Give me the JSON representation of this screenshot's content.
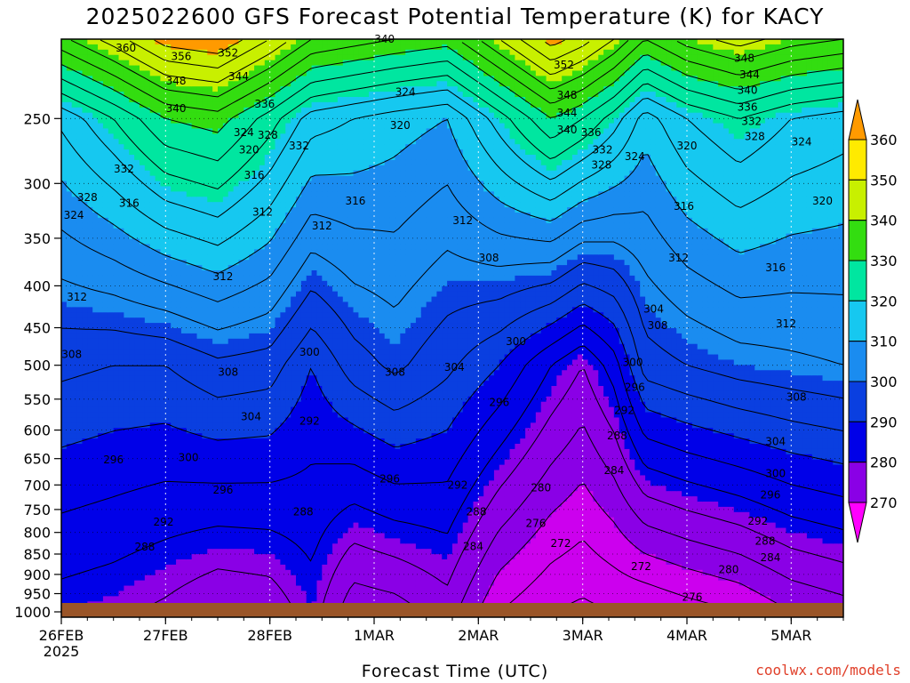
{
  "chart_data": {
    "type": "heatmap",
    "title": "2025022600 GFS Forecast Potential Temperature (K) for KACY",
    "xlabel": "Forecast Time (UTC)",
    "ylabel": "",
    "credit": "coolwx.com/models",
    "x_ticks": [
      {
        "label": "26FEB",
        "sub": "2025",
        "day": 0
      },
      {
        "label": "27FEB",
        "sub": "",
        "day": 1
      },
      {
        "label": "28FEB",
        "sub": "",
        "day": 2
      },
      {
        "label": "1MAR",
        "sub": "",
        "day": 3
      },
      {
        "label": "2MAR",
        "sub": "",
        "day": 4
      },
      {
        "label": "3MAR",
        "sub": "",
        "day": 5
      },
      {
        "label": "4MAR",
        "sub": "",
        "day": 6
      },
      {
        "label": "5MAR",
        "sub": "",
        "day": 7
      }
    ],
    "xlim": [
      0,
      7.5
    ],
    "y_ticks": [
      250,
      300,
      350,
      400,
      450,
      500,
      550,
      600,
      650,
      700,
      750,
      800,
      850,
      900,
      950,
      1000
    ],
    "ylim": [
      1015,
      200
    ],
    "y_scale": "log",
    "colorbar": {
      "ticks": [
        270,
        280,
        290,
        300,
        310,
        320,
        330,
        340,
        350,
        360
      ],
      "colors": [
        "#ff00ff",
        "#cc00ee",
        "#8a00e6",
        "#0000e8",
        "#0a3fe0",
        "#1a8cf0",
        "#16c8f0",
        "#00e6a0",
        "#33dd10",
        "#c8f000",
        "#ffea00",
        "#ff9a00"
      ]
    },
    "theta_profiles": [
      {
        "day": 0.0,
        "surface": 290,
        "p500": 305,
        "p250": 325
      },
      {
        "day": 0.5,
        "surface": 289,
        "p500": 304,
        "p250": 332
      },
      {
        "day": 1.0,
        "surface": 287,
        "p500": 304,
        "p250": 340
      },
      {
        "day": 1.5,
        "surface": 284,
        "p500": 307,
        "p250": 342
      },
      {
        "day": 2.0,
        "surface": 285,
        "p500": 306,
        "p250": 334
      },
      {
        "day": 2.4,
        "surface": 290,
        "p500": 300,
        "p250": 326
      },
      {
        "day": 2.8,
        "surface": 281,
        "p500": 306,
        "p250": 324
      },
      {
        "day": 3.2,
        "surface": 282,
        "p500": 309,
        "p250": 322
      },
      {
        "day": 3.7,
        "surface": 286,
        "p500": 305,
        "p250": 320
      },
      {
        "day": 4.2,
        "surface": 276,
        "p500": 300,
        "p250": 330
      },
      {
        "day": 4.7,
        "surface": 272,
        "p500": 292,
        "p250": 340
      },
      {
        "day": 5.0,
        "surface": 271,
        "p500": 288,
        "p250": 336
      },
      {
        "day": 5.3,
        "surface": 272,
        "p500": 294,
        "p250": 330
      },
      {
        "day": 5.6,
        "surface": 272,
        "p500": 306,
        "p250": 322
      },
      {
        "day": 6.0,
        "surface": 274,
        "p500": 308,
        "p250": 328
      },
      {
        "day": 6.5,
        "surface": 276,
        "p500": 310,
        "p250": 332
      },
      {
        "day": 7.0,
        "surface": 280,
        "p500": 311,
        "p250": 328
      },
      {
        "day": 7.5,
        "surface": 282,
        "p500": 312,
        "p250": 326
      }
    ],
    "contour_labels": [
      {
        "text": "360",
        "day": 0.62,
        "p": 205
      },
      {
        "text": "356",
        "day": 1.15,
        "p": 210
      },
      {
        "text": "352",
        "day": 1.6,
        "p": 208
      },
      {
        "text": "348",
        "day": 1.1,
        "p": 225
      },
      {
        "text": "344",
        "day": 1.7,
        "p": 222
      },
      {
        "text": "340",
        "day": 1.1,
        "p": 243
      },
      {
        "text": "336",
        "day": 1.95,
        "p": 240
      },
      {
        "text": "324",
        "day": 1.75,
        "p": 260
      },
      {
        "text": "328",
        "day": 1.98,
        "p": 262
      },
      {
        "text": "320",
        "day": 1.8,
        "p": 273
      },
      {
        "text": "332",
        "day": 2.28,
        "p": 270
      },
      {
        "text": "332",
        "day": 0.6,
        "p": 288
      },
      {
        "text": "316",
        "day": 1.85,
        "p": 293
      },
      {
        "text": "316",
        "day": 0.65,
        "p": 317
      },
      {
        "text": "328",
        "day": 0.25,
        "p": 312
      },
      {
        "text": "324",
        "day": 0.12,
        "p": 328
      },
      {
        "text": "312",
        "day": 1.93,
        "p": 325
      },
      {
        "text": "312",
        "day": 2.5,
        "p": 338
      },
      {
        "text": "316",
        "day": 2.82,
        "p": 315
      },
      {
        "text": "340",
        "day": 3.1,
        "p": 200
      },
      {
        "text": "324",
        "day": 3.3,
        "p": 232
      },
      {
        "text": "320",
        "day": 3.25,
        "p": 255
      },
      {
        "text": "312",
        "day": 3.85,
        "p": 333
      },
      {
        "text": "308",
        "day": 4.1,
        "p": 370
      },
      {
        "text": "312",
        "day": 1.55,
        "p": 390
      },
      {
        "text": "312",
        "day": 0.15,
        "p": 413
      },
      {
        "text": "308",
        "day": 0.1,
        "p": 485
      },
      {
        "text": "308",
        "day": 1.6,
        "p": 510
      },
      {
        "text": "300",
        "day": 2.38,
        "p": 482
      },
      {
        "text": "308",
        "day": 3.2,
        "p": 510
      },
      {
        "text": "304",
        "day": 3.77,
        "p": 503
      },
      {
        "text": "300",
        "day": 4.36,
        "p": 468
      },
      {
        "text": "296",
        "day": 4.2,
        "p": 555
      },
      {
        "text": "304",
        "day": 1.82,
        "p": 578
      },
      {
        "text": "292",
        "day": 2.38,
        "p": 585
      },
      {
        "text": "296",
        "day": 0.5,
        "p": 652
      },
      {
        "text": "300",
        "day": 1.22,
        "p": 648
      },
      {
        "text": "296",
        "day": 1.55,
        "p": 710
      },
      {
        "text": "296",
        "day": 3.15,
        "p": 688
      },
      {
        "text": "292",
        "day": 3.8,
        "p": 700
      },
      {
        "text": "292",
        "day": 0.98,
        "p": 777
      },
      {
        "text": "288",
        "day": 0.8,
        "p": 833
      },
      {
        "text": "288",
        "day": 2.32,
        "p": 755
      },
      {
        "text": "288",
        "day": 3.98,
        "p": 755
      },
      {
        "text": "284",
        "day": 3.95,
        "p": 832
      },
      {
        "text": "280",
        "day": 4.6,
        "p": 706
      },
      {
        "text": "276",
        "day": 4.55,
        "p": 780
      },
      {
        "text": "272",
        "day": 4.79,
        "p": 825
      },
      {
        "text": "284",
        "day": 5.3,
        "p": 672
      },
      {
        "text": "288",
        "day": 5.33,
        "p": 610
      },
      {
        "text": "292",
        "day": 5.4,
        "p": 568
      },
      {
        "text": "296",
        "day": 5.5,
        "p": 532
      },
      {
        "text": "300",
        "day": 5.48,
        "p": 496
      },
      {
        "text": "308",
        "day": 5.72,
        "p": 447
      },
      {
        "text": "304",
        "day": 5.68,
        "p": 427
      },
      {
        "text": "312",
        "day": 5.92,
        "p": 370
      },
      {
        "text": "316",
        "day": 5.97,
        "p": 320
      },
      {
        "text": "328",
        "day": 5.18,
        "p": 285
      },
      {
        "text": "332",
        "day": 5.19,
        "p": 273
      },
      {
        "text": "324",
        "day": 5.5,
        "p": 278
      },
      {
        "text": "336",
        "day": 5.08,
        "p": 260
      },
      {
        "text": "340",
        "day": 4.85,
        "p": 258
      },
      {
        "text": "344",
        "day": 4.85,
        "p": 246
      },
      {
        "text": "348",
        "day": 4.85,
        "p": 234
      },
      {
        "text": "352",
        "day": 4.82,
        "p": 215
      },
      {
        "text": "320",
        "day": 6.0,
        "p": 270
      },
      {
        "text": "348",
        "day": 6.55,
        "p": 211
      },
      {
        "text": "344",
        "day": 6.6,
        "p": 221
      },
      {
        "text": "340",
        "day": 6.58,
        "p": 231
      },
      {
        "text": "336",
        "day": 6.58,
        "p": 242
      },
      {
        "text": "332",
        "day": 6.62,
        "p": 252
      },
      {
        "text": "328",
        "day": 6.65,
        "p": 263
      },
      {
        "text": "324",
        "day": 7.1,
        "p": 267
      },
      {
        "text": "320",
        "day": 7.3,
        "p": 315
      },
      {
        "text": "316",
        "day": 6.85,
        "p": 380
      },
      {
        "text": "312",
        "day": 6.95,
        "p": 445
      },
      {
        "text": "308",
        "day": 7.05,
        "p": 547
      },
      {
        "text": "304",
        "day": 6.85,
        "p": 620
      },
      {
        "text": "300",
        "day": 6.85,
        "p": 678
      },
      {
        "text": "296",
        "day": 6.8,
        "p": 720
      },
      {
        "text": "292",
        "day": 6.68,
        "p": 775
      },
      {
        "text": "288",
        "day": 6.75,
        "p": 820
      },
      {
        "text": "284",
        "day": 6.8,
        "p": 858
      },
      {
        "text": "280",
        "day": 6.4,
        "p": 888
      },
      {
        "text": "272",
        "day": 5.56,
        "p": 880
      },
      {
        "text": "276",
        "day": 6.05,
        "p": 960
      }
    ]
  }
}
